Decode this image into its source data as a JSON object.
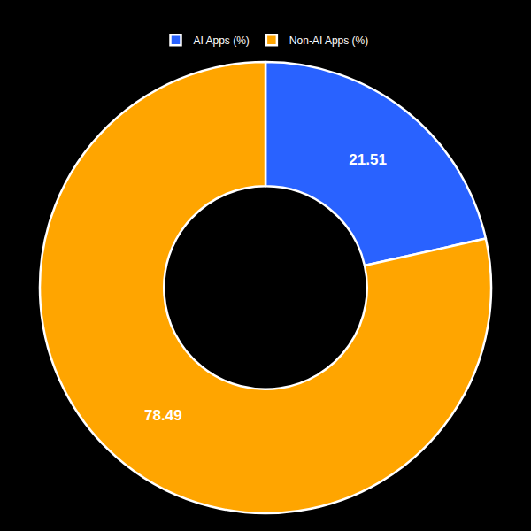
{
  "chart_data": {
    "type": "donut",
    "categories": [
      "AI Apps (%)",
      "Non-AI Apps (%)"
    ],
    "values": [
      21.51,
      78.49
    ],
    "colors": [
      "#2962FF",
      "#FFA500"
    ],
    "data_labels": true,
    "legend": "top"
  }
}
